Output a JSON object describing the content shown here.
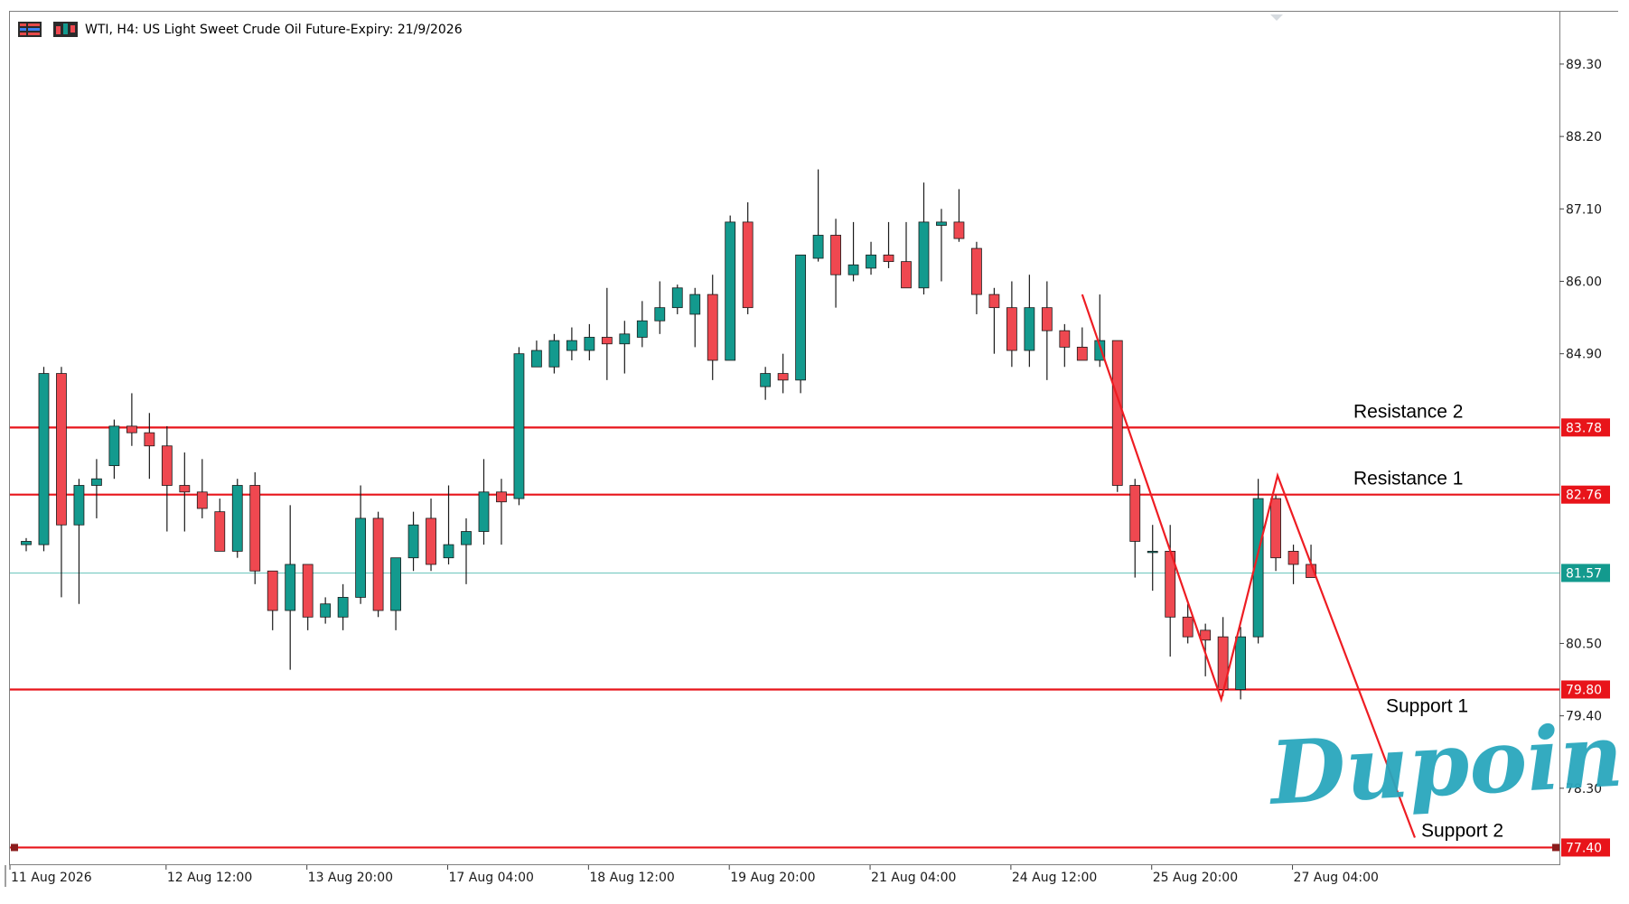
{
  "header": {
    "title": "WTI, H4:  US Light Sweet Crude Oil Future-Expiry: 21/9/2026",
    "menu_icon": "menu-bars-icon",
    "chart_type_icon": "candlestick-icon"
  },
  "watermark": {
    "brand": "Dupoin",
    "color": "#2aa7bd"
  },
  "colors": {
    "bull": "#139a8e",
    "bear": "#ef4850",
    "level_line": "#e8141a",
    "price_line": "#6cc5bd",
    "price_tag": "#139a8e",
    "pattern": "#ee1d23"
  },
  "chart_data": {
    "type": "candlestick",
    "instrument": "WTI",
    "timeframe": "H4",
    "ylim": [
      76.9,
      90.0
    ],
    "y_ticks": [
      "89.30",
      "88.20",
      "87.10",
      "86.00",
      "84.90",
      "80.50",
      "79.40",
      "78.30"
    ],
    "x_ticks": [
      {
        "label": "11 Aug 2026",
        "index": 0
      },
      {
        "label": "12 Aug 12:00",
        "index": 8
      },
      {
        "label": "13 Aug 20:00",
        "index": 16
      },
      {
        "label": "17 Aug 04:00",
        "index": 24
      },
      {
        "label": "18 Aug 12:00",
        "index": 32
      },
      {
        "label": "19 Aug 20:00",
        "index": 40
      },
      {
        "label": "21 Aug 04:00",
        "index": 48
      },
      {
        "label": "24 Aug 12:00",
        "index": 56
      },
      {
        "label": "25 Aug 20:00",
        "index": 64
      },
      {
        "label": "27 Aug 04:00",
        "index": 72
      }
    ],
    "current_price": {
      "value": 81.57,
      "label": "81.57"
    },
    "levels": [
      {
        "name": "Resistance 2",
        "value": 83.78,
        "label": "83.78"
      },
      {
        "name": "Resistance 1",
        "value": 82.76,
        "label": "82.76"
      },
      {
        "name": "Support 1",
        "value": 79.8,
        "label": "79.80"
      },
      {
        "name": "Support 2",
        "value": 77.4,
        "label": "77.40"
      }
    ],
    "projection_path": [
      {
        "i": 60.0,
        "price": 85.8
      },
      {
        "i": 67.9,
        "price": 79.65
      },
      {
        "i": 71.1,
        "price": 83.05
      },
      {
        "i": 78.9,
        "price": 77.55
      }
    ],
    "candles": [
      {
        "o": 82.0,
        "h": 82.1,
        "l": 81.9,
        "c": 82.05
      },
      {
        "o": 82.0,
        "h": 84.7,
        "l": 81.9,
        "c": 84.6
      },
      {
        "o": 84.6,
        "h": 84.7,
        "l": 81.2,
        "c": 82.3
      },
      {
        "o": 82.3,
        "h": 83.0,
        "l": 81.1,
        "c": 82.9
      },
      {
        "o": 82.9,
        "h": 83.3,
        "l": 82.4,
        "c": 83.0
      },
      {
        "o": 83.2,
        "h": 83.9,
        "l": 83.0,
        "c": 83.8
      },
      {
        "o": 83.8,
        "h": 84.3,
        "l": 83.5,
        "c": 83.7
      },
      {
        "o": 83.7,
        "h": 84.0,
        "l": 83.0,
        "c": 83.5
      },
      {
        "o": 83.5,
        "h": 83.8,
        "l": 82.2,
        "c": 82.9
      },
      {
        "o": 82.9,
        "h": 83.4,
        "l": 82.2,
        "c": 82.8
      },
      {
        "o": 82.8,
        "h": 83.3,
        "l": 82.4,
        "c": 82.55
      },
      {
        "o": 82.5,
        "h": 82.7,
        "l": 81.9,
        "c": 81.9
      },
      {
        "o": 81.9,
        "h": 83.0,
        "l": 81.8,
        "c": 82.9
      },
      {
        "o": 82.9,
        "h": 83.1,
        "l": 81.4,
        "c": 81.6
      },
      {
        "o": 81.6,
        "h": 81.6,
        "l": 80.7,
        "c": 81.0
      },
      {
        "o": 81.0,
        "h": 82.6,
        "l": 80.1,
        "c": 81.7
      },
      {
        "o": 81.7,
        "h": 81.7,
        "l": 80.7,
        "c": 80.9
      },
      {
        "o": 80.9,
        "h": 81.2,
        "l": 80.8,
        "c": 81.1
      },
      {
        "o": 80.9,
        "h": 81.4,
        "l": 80.7,
        "c": 81.2
      },
      {
        "o": 81.2,
        "h": 82.9,
        "l": 81.1,
        "c": 82.4
      },
      {
        "o": 82.4,
        "h": 82.5,
        "l": 80.9,
        "c": 81.0
      },
      {
        "o": 81.0,
        "h": 81.7,
        "l": 80.7,
        "c": 81.8
      },
      {
        "o": 81.8,
        "h": 82.5,
        "l": 81.6,
        "c": 82.3
      },
      {
        "o": 82.4,
        "h": 82.7,
        "l": 81.6,
        "c": 81.7
      },
      {
        "o": 81.8,
        "h": 82.9,
        "l": 81.7,
        "c": 82.0
      },
      {
        "o": 82.0,
        "h": 82.4,
        "l": 81.4,
        "c": 82.2
      },
      {
        "o": 82.2,
        "h": 83.3,
        "l": 82.0,
        "c": 82.8
      },
      {
        "o": 82.8,
        "h": 83.0,
        "l": 82.0,
        "c": 82.65
      },
      {
        "o": 82.7,
        "h": 85.0,
        "l": 82.6,
        "c": 84.9
      },
      {
        "o": 84.7,
        "h": 85.1,
        "l": 84.7,
        "c": 84.95
      },
      {
        "o": 84.7,
        "h": 85.2,
        "l": 84.6,
        "c": 85.1
      },
      {
        "o": 84.95,
        "h": 85.3,
        "l": 84.8,
        "c": 85.1
      },
      {
        "o": 84.95,
        "h": 85.35,
        "l": 84.8,
        "c": 85.15
      },
      {
        "o": 85.15,
        "h": 85.9,
        "l": 84.5,
        "c": 85.05
      },
      {
        "o": 85.05,
        "h": 85.4,
        "l": 84.6,
        "c": 85.2
      },
      {
        "o": 85.15,
        "h": 85.7,
        "l": 85.0,
        "c": 85.4
      },
      {
        "o": 85.4,
        "h": 86.0,
        "l": 85.2,
        "c": 85.6
      },
      {
        "o": 85.6,
        "h": 85.95,
        "l": 85.5,
        "c": 85.9
      },
      {
        "o": 85.5,
        "h": 85.9,
        "l": 85.0,
        "c": 85.8
      },
      {
        "o": 85.8,
        "h": 86.1,
        "l": 84.5,
        "c": 84.8
      },
      {
        "o": 84.8,
        "h": 87.0,
        "l": 84.8,
        "c": 86.9
      },
      {
        "o": 86.9,
        "h": 87.2,
        "l": 85.5,
        "c": 85.6
      },
      {
        "o": 84.4,
        "h": 84.7,
        "l": 84.2,
        "c": 84.6
      },
      {
        "o": 84.6,
        "h": 84.9,
        "l": 84.3,
        "c": 84.5
      },
      {
        "o": 84.5,
        "h": 86.4,
        "l": 84.3,
        "c": 86.4
      },
      {
        "o": 86.35,
        "h": 87.7,
        "l": 86.3,
        "c": 86.7
      },
      {
        "o": 86.7,
        "h": 86.95,
        "l": 85.6,
        "c": 86.1
      },
      {
        "o": 86.1,
        "h": 86.9,
        "l": 86.0,
        "c": 86.25
      },
      {
        "o": 86.2,
        "h": 86.6,
        "l": 86.1,
        "c": 86.4
      },
      {
        "o": 86.4,
        "h": 86.9,
        "l": 86.2,
        "c": 86.3
      },
      {
        "o": 86.3,
        "h": 86.9,
        "l": 85.9,
        "c": 85.9
      },
      {
        "o": 85.9,
        "h": 87.5,
        "l": 85.8,
        "c": 86.9
      },
      {
        "o": 86.85,
        "h": 87.1,
        "l": 86.0,
        "c": 86.9
      },
      {
        "o": 86.9,
        "h": 87.4,
        "l": 86.6,
        "c": 86.65
      },
      {
        "o": 86.5,
        "h": 86.6,
        "l": 85.5,
        "c": 85.8
      },
      {
        "o": 85.8,
        "h": 85.9,
        "l": 84.9,
        "c": 85.6
      },
      {
        "o": 85.6,
        "h": 86.0,
        "l": 84.7,
        "c": 84.95
      },
      {
        "o": 84.95,
        "h": 86.1,
        "l": 84.7,
        "c": 85.6
      },
      {
        "o": 85.6,
        "h": 86.0,
        "l": 84.5,
        "c": 85.25
      },
      {
        "o": 85.25,
        "h": 85.35,
        "l": 84.7,
        "c": 85.0
      },
      {
        "o": 85.0,
        "h": 85.3,
        "l": 84.8,
        "c": 84.8
      },
      {
        "o": 84.8,
        "h": 85.8,
        "l": 84.7,
        "c": 85.1
      },
      {
        "o": 85.1,
        "h": 85.1,
        "l": 82.8,
        "c": 82.9
      },
      {
        "o": 82.9,
        "h": 83.0,
        "l": 81.5,
        "c": 82.05
      },
      {
        "o": 81.9,
        "h": 82.3,
        "l": 81.3,
        "c": 81.9
      },
      {
        "o": 81.9,
        "h": 82.3,
        "l": 80.3,
        "c": 80.9
      },
      {
        "o": 80.9,
        "h": 81.1,
        "l": 80.5,
        "c": 80.6
      },
      {
        "o": 80.7,
        "h": 80.8,
        "l": 80.0,
        "c": 80.55
      },
      {
        "o": 80.6,
        "h": 80.9,
        "l": 79.7,
        "c": 79.8
      },
      {
        "o": 79.8,
        "h": 80.75,
        "l": 79.65,
        "c": 80.6
      },
      {
        "o": 80.6,
        "h": 83.0,
        "l": 80.5,
        "c": 82.7
      },
      {
        "o": 82.7,
        "h": 82.75,
        "l": 81.6,
        "c": 81.8
      },
      {
        "o": 81.9,
        "h": 82.0,
        "l": 81.4,
        "c": 81.7
      },
      {
        "o": 81.7,
        "h": 82.0,
        "l": 81.5,
        "c": 81.5
      }
    ]
  }
}
